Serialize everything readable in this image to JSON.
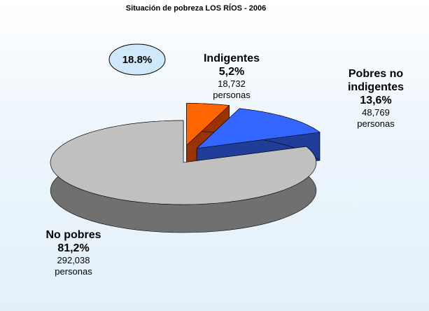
{
  "chart_data": {
    "type": "pie",
    "title": "Situación de pobreza LOS RÍOS - 2006",
    "categories": [
      "Indigentes",
      "Pobres no indigentes",
      "No pobres"
    ],
    "values": [
      5.2,
      13.6,
      81.2
    ],
    "value_labels": [
      "5,2%",
      "13,6%",
      "81,2%"
    ],
    "count_labels": [
      "18,732",
      "48,769",
      "292,038"
    ],
    "count_unit": "personas",
    "colors": [
      "#ff6600",
      "#3366ff",
      "#c0c0c0"
    ],
    "side_colors": [
      "#993300",
      "#1f3d99",
      "#707070"
    ],
    "annotation": "18.8%"
  }
}
